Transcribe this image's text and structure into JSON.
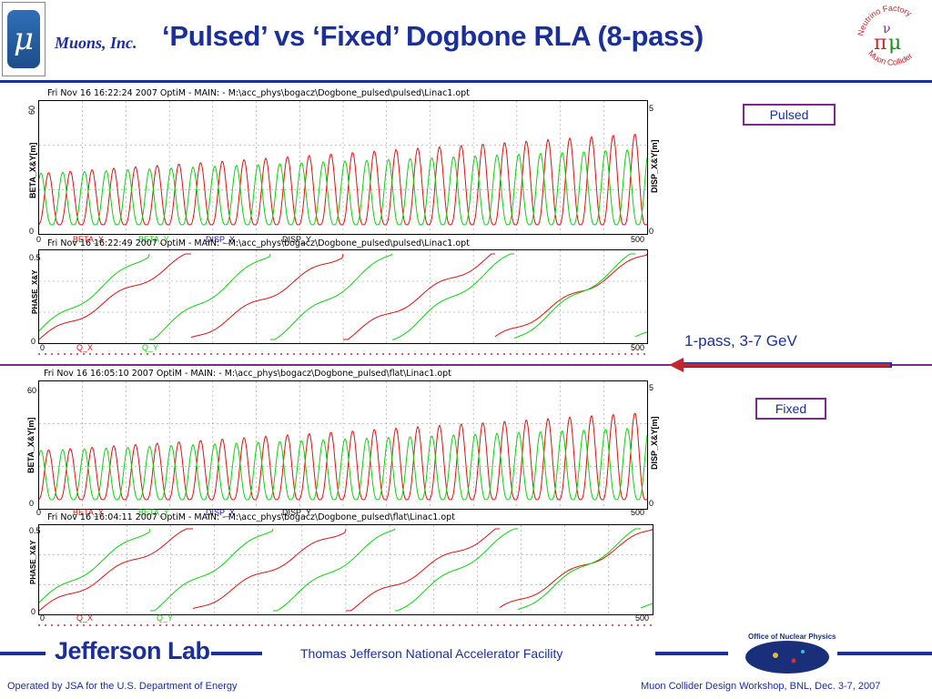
{
  "header": {
    "logo_glyph": "μ",
    "company": "Muons, Inc.",
    "title": "‘Pulsed’ vs ‘Fixed’ Dogbone RLA (8-pass)",
    "nf_logo_text": [
      "Neutrino Factory",
      "Muon Collider"
    ]
  },
  "panels": {
    "pulsed_beta": {
      "header": "Fri Nov 16 16:22:24 2007     OptiM - MAIN: - M:\\acc_phys\\bogacz\\Dogbone_pulsed\\pulsed\\Linac1.opt",
      "ylabel_left": "BETA_X&Y[m]",
      "ylabel_right": "DISP_X&Y[m]",
      "y_left_max": "60",
      "y_left_min": "0",
      "y_right_max": "5",
      "y_right_min": "0",
      "x_min": "0",
      "x_max": "500",
      "legend": [
        "BETA_X",
        "BETA_Y",
        "DISP_X",
        "DISP_Y"
      ]
    },
    "pulsed_phase": {
      "header": "Fri Nov 16 16:22:49 2007     OptiM - MAIN: - M:\\acc_phys\\bogacz\\Dogbone_pulsed\\pulsed\\Linac1.opt",
      "ylabel_left": "PHASE_X&Y",
      "y_max": "0.5",
      "y_min": "0",
      "x_min": "0",
      "x_max": "500",
      "legend": [
        "Q_X",
        "Q_Y"
      ]
    },
    "fixed_beta": {
      "header": "Fri Nov 16 16:05:10 2007     OptiM - MAIN: - M:\\acc_phys\\bogacz\\Dogbone_pulsed\\flat\\Linac1.opt",
      "ylabel_left": "BETA_X&Y[m]",
      "ylabel_right": "DISP_X&Y[m]",
      "y_left_max": "60",
      "y_left_min": "0",
      "y_right_max": "5",
      "y_right_min": "0",
      "x_min": "0",
      "x_max": "500",
      "legend": [
        "BETA_X",
        "BETA_Y",
        "DISP_X",
        "DISP_Y"
      ]
    },
    "fixed_phase": {
      "header": "Fri Nov 16 16:04:11 2007     OptiM - MAIN: - M:\\acc_phys\\bogacz\\Dogbone_pulsed\\flat\\Linac1.opt",
      "ylabel_left": "PHASE_X&Y",
      "y_max": "0.5",
      "y_min": "0",
      "x_min": "0",
      "x_max": "500",
      "legend": [
        "Q_X",
        "Q_Y"
      ]
    }
  },
  "labels": {
    "pulsed": "Pulsed",
    "fixed": "Fixed",
    "pass": "1-pass, 3-7 GeV"
  },
  "colors": {
    "title_blue": "#1a2f9a",
    "beta_x": "#e01010",
    "beta_y": "#10d010",
    "disp": "#1010c0",
    "frame_purple": "#7a2a8a"
  },
  "footer": {
    "jlab": "Jefferson Lab",
    "center": "Thomas Jefferson National Accelerator Facility",
    "left": "Operated by JSA for the U.S. Department of Energy",
    "right": "Muon Collider Design Workshop, BNL, Dec. 3-7, 2007",
    "onp_text": "Office of Nuclear Physics"
  }
}
